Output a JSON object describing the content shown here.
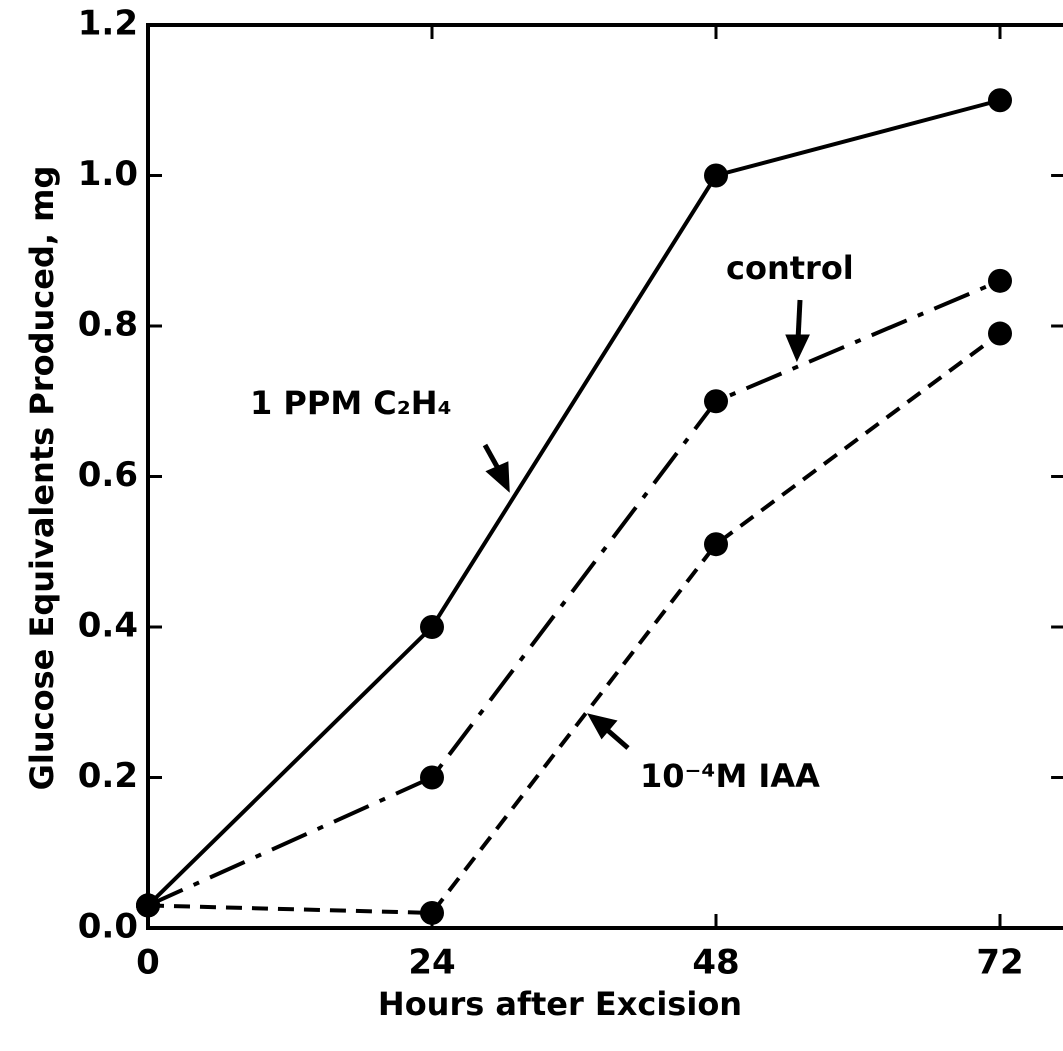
{
  "chart_data": {
    "type": "line",
    "xlabel": "Hours after Excision",
    "ylabel": "Glucose Equivalents Produced, mg",
    "x": [
      0,
      24,
      48,
      72
    ],
    "series": [
      {
        "name": "1 PPM C₂H₄",
        "color": "#000000",
        "line_style": "solid",
        "values": [
          0.03,
          0.4,
          1.0,
          1.1
        ]
      },
      {
        "name": "control",
        "color": "#000000",
        "line_style": "dash-dot",
        "values": [
          0.03,
          0.2,
          0.7,
          0.86
        ]
      },
      {
        "name": "10⁻⁴M IAA",
        "color": "#000000",
        "line_style": "dashed",
        "values": [
          0.03,
          0.02,
          0.51,
          0.79
        ]
      }
    ],
    "xlim": [
      0,
      77.5
    ],
    "ylim": [
      0,
      1.2
    ],
    "xticks": [
      0,
      24,
      48,
      72
    ],
    "yticks": [
      {
        "value": 0,
        "label": "0.0"
      },
      0.2,
      0.4,
      0.6,
      0.8,
      {
        "value": 1,
        "label": "1.0"
      },
      1.2
    ]
  }
}
